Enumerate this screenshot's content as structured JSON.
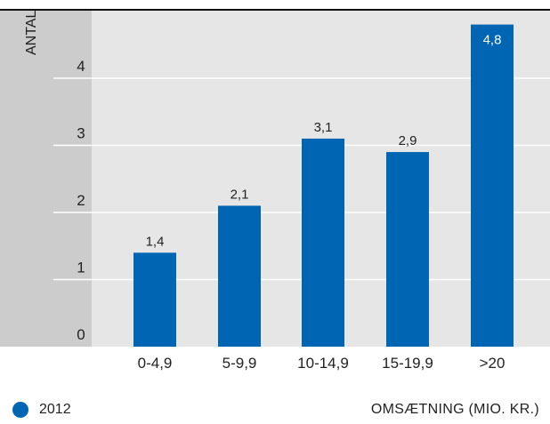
{
  "chart_data": {
    "type": "bar",
    "ylabel": "ANTAL",
    "xlabel": "OMSÆTNING (MIO. KR.)",
    "categories": [
      "0-4,9",
      "5-9,9",
      "10-14,9",
      "15-19,9",
      ">20"
    ],
    "series": [
      {
        "name": "2012",
        "values": [
          1.4,
          2.1,
          3.1,
          2.9,
          4.8
        ],
        "labels": [
          "1,4",
          "2,1",
          "3,1",
          "2,9",
          "4,8"
        ]
      }
    ],
    "yticks": [
      0,
      1,
      2,
      3,
      4
    ],
    "ylim": [
      0,
      5
    ],
    "grid": true,
    "legend": "bottom-left"
  },
  "colors": {
    "bar": "#0066b3",
    "plot_background": "#e6e6e6",
    "axis_band": "#cccccc",
    "frame": "#111111",
    "gridline": "#ffffff"
  }
}
